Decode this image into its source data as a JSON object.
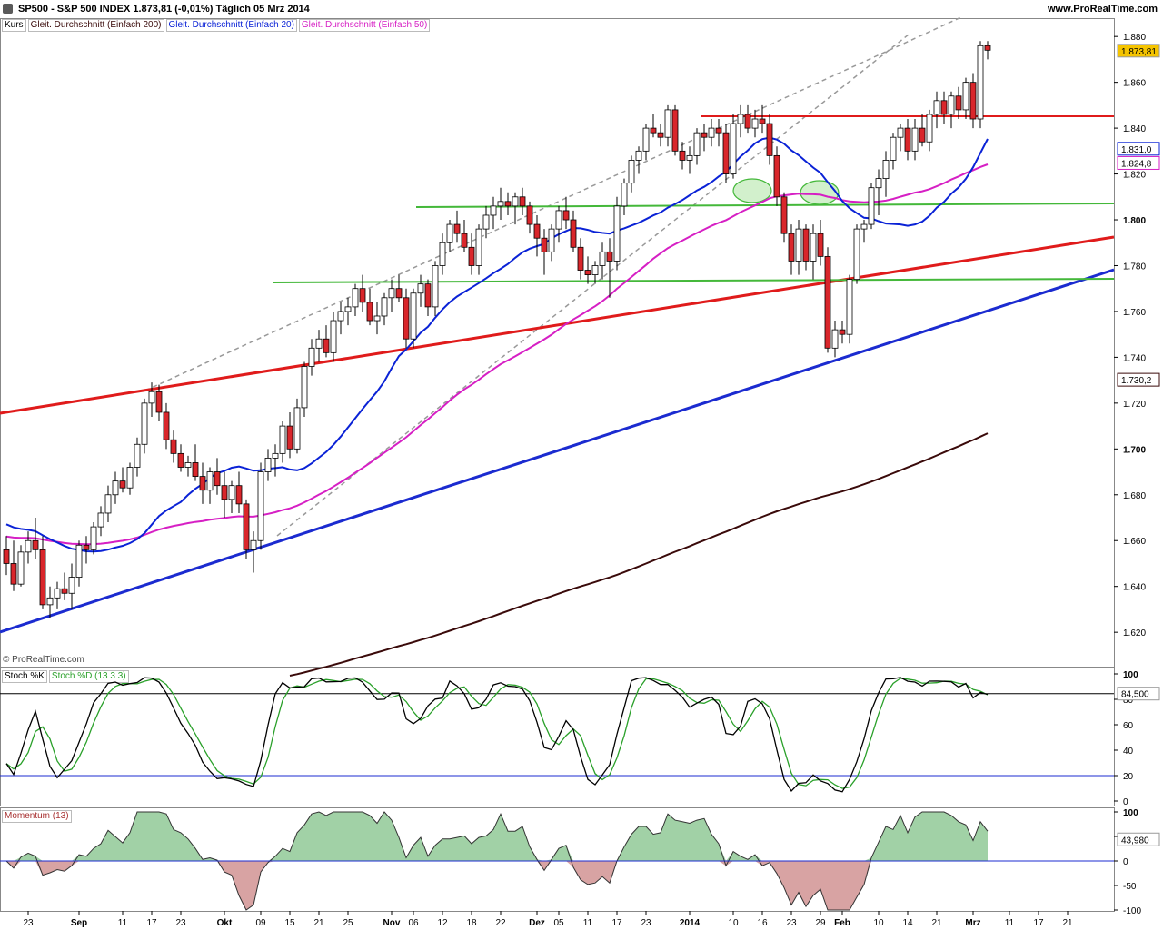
{
  "header": {
    "title": "SP500 - S&P 500 INDEX     1.873,81 (-0,01%)     Täglich  05 Mrz 2014",
    "site": "www.ProRealTime.com"
  },
  "legend": {
    "price": "Kurs",
    "sma200": "Gleit. Durchschnitt (Einfach 200)",
    "sma20": "Gleit. Durchschnitt (Einfach 20)",
    "sma50": "Gleit. Durchschnitt (Einfach 50)"
  },
  "copyright": "© ProRealTime.com",
  "colors": {
    "up": "#ffffff",
    "down": "#d9262b",
    "sma20": "#0a22d6",
    "sma50": "#d61fc4",
    "sma200": "#3a0a0a",
    "resistance": "#e01b1b",
    "support": "#1b2bd0",
    "horizontal": "#44b83a",
    "stochK": "#000000",
    "stochD": "#2aa02a",
    "momentum_fill": "#2f9a3a",
    "momentum_neg_fill": "#a83232"
  },
  "price_labels": {
    "last": "1.873,81",
    "sma20": "1.831,0",
    "sma50": "1.824,8",
    "sma200": "1.730,2"
  },
  "stoch": {
    "legend_k": "Stoch %K",
    "legend_d": "Stoch %D (13 3 3)",
    "value": "84,500"
  },
  "momentum": {
    "legend": "Momentum (13)",
    "value": "43,980"
  },
  "chart_data": [
    {
      "type": "candlestick",
      "title": "SP500 - S&P 500 INDEX",
      "ylim": [
        1605,
        1888
      ],
      "yticks": [
        1620,
        1640,
        1660,
        1680,
        1700,
        1720,
        1740,
        1760,
        1780,
        1800,
        1820,
        1840,
        1860,
        1880
      ],
      "ytick_labels": [
        "1.620",
        "1.640",
        "1.660",
        "1.680",
        "1.700",
        "1.720",
        "1.740",
        "1.760",
        "1.780",
        "1.800",
        "1.820",
        "1.840",
        "1.860",
        "1.880"
      ],
      "x_labels": [
        {
          "i": 3,
          "label": "23"
        },
        {
          "i": 10,
          "label": "Sep"
        },
        {
          "i": 16,
          "label": "11"
        },
        {
          "i": 20,
          "label": "17"
        },
        {
          "i": 24,
          "label": "23"
        },
        {
          "i": 30,
          "label": "Okt"
        },
        {
          "i": 35,
          "label": "09"
        },
        {
          "i": 39,
          "label": "15"
        },
        {
          "i": 43,
          "label": "21"
        },
        {
          "i": 47,
          "label": "25"
        },
        {
          "i": 53,
          "label": "Nov"
        },
        {
          "i": 56,
          "label": "06"
        },
        {
          "i": 60,
          "label": "12"
        },
        {
          "i": 64,
          "label": "18"
        },
        {
          "i": 68,
          "label": "22"
        },
        {
          "i": 73,
          "label": "Dez"
        },
        {
          "i": 76,
          "label": "05"
        },
        {
          "i": 80,
          "label": "11"
        },
        {
          "i": 84,
          "label": "17"
        },
        {
          "i": 88,
          "label": "23"
        },
        {
          "i": 94,
          "label": "2014"
        },
        {
          "i": 100,
          "label": "10"
        },
        {
          "i": 104,
          "label": "16"
        },
        {
          "i": 108,
          "label": "23"
        },
        {
          "i": 112,
          "label": "29"
        },
        {
          "i": 115,
          "label": "Feb"
        },
        {
          "i": 120,
          "label": "10"
        },
        {
          "i": 124,
          "label": "14"
        },
        {
          "i": 128,
          "label": "21"
        },
        {
          "i": 133,
          "label": "Mrz"
        },
        {
          "i": 138,
          "label": "11"
        },
        {
          "i": 142,
          "label": "17"
        },
        {
          "i": 146,
          "label": "21"
        }
      ],
      "candles": [
        [
          1656,
          1662,
          1645,
          1650
        ],
        [
          1650,
          1660,
          1638,
          1641
        ],
        [
          1641,
          1658,
          1640,
          1655
        ],
        [
          1655,
          1664,
          1650,
          1660
        ],
        [
          1660,
          1670,
          1652,
          1656
        ],
        [
          1656,
          1662,
          1630,
          1632
        ],
        [
          1632,
          1640,
          1626,
          1635
        ],
        [
          1635,
          1642,
          1630,
          1639
        ],
        [
          1639,
          1646,
          1634,
          1637
        ],
        [
          1637,
          1650,
          1630,
          1644
        ],
        [
          1644,
          1660,
          1640,
          1658
        ],
        [
          1658,
          1662,
          1650,
          1656
        ],
        [
          1656,
          1668,
          1654,
          1666
        ],
        [
          1666,
          1675,
          1662,
          1672
        ],
        [
          1672,
          1684,
          1668,
          1680
        ],
        [
          1680,
          1690,
          1676,
          1686
        ],
        [
          1686,
          1692,
          1681,
          1683
        ],
        [
          1683,
          1694,
          1680,
          1692
        ],
        [
          1692,
          1705,
          1688,
          1702
        ],
        [
          1702,
          1722,
          1698,
          1720
        ],
        [
          1720,
          1729,
          1714,
          1725
        ],
        [
          1725,
          1728,
          1712,
          1716
        ],
        [
          1716,
          1720,
          1700,
          1704
        ],
        [
          1704,
          1708,
          1694,
          1698
        ],
        [
          1698,
          1702,
          1690,
          1692
        ],
        [
          1692,
          1697,
          1688,
          1694
        ],
        [
          1694,
          1702,
          1686,
          1688
        ],
        [
          1688,
          1694,
          1676,
          1682
        ],
        [
          1682,
          1692,
          1676,
          1690
        ],
        [
          1690,
          1696,
          1680,
          1684
        ],
        [
          1684,
          1690,
          1670,
          1678
        ],
        [
          1678,
          1686,
          1672,
          1684
        ],
        [
          1684,
          1690,
          1672,
          1676
        ],
        [
          1676,
          1678,
          1652,
          1656
        ],
        [
          1656,
          1664,
          1646,
          1660
        ],
        [
          1660,
          1694,
          1656,
          1690
        ],
        [
          1690,
          1700,
          1686,
          1696
        ],
        [
          1696,
          1702,
          1688,
          1698
        ],
        [
          1698,
          1712,
          1694,
          1710
        ],
        [
          1710,
          1716,
          1696,
          1700
        ],
        [
          1700,
          1722,
          1698,
          1718
        ],
        [
          1718,
          1738,
          1714,
          1736
        ],
        [
          1736,
          1748,
          1732,
          1744
        ],
        [
          1744,
          1752,
          1738,
          1748
        ],
        [
          1748,
          1754,
          1740,
          1742
        ],
        [
          1742,
          1760,
          1738,
          1756
        ],
        [
          1756,
          1764,
          1750,
          1760
        ],
        [
          1760,
          1766,
          1754,
          1762
        ],
        [
          1762,
          1772,
          1758,
          1770
        ],
        [
          1770,
          1776,
          1760,
          1764
        ],
        [
          1764,
          1770,
          1754,
          1756
        ],
        [
          1756,
          1764,
          1750,
          1758
        ],
        [
          1758,
          1768,
          1754,
          1766
        ],
        [
          1766,
          1774,
          1760,
          1770
        ],
        [
          1770,
          1776,
          1764,
          1766
        ],
        [
          1766,
          1770,
          1744,
          1748
        ],
        [
          1748,
          1770,
          1744,
          1768
        ],
        [
          1768,
          1776,
          1762,
          1772
        ],
        [
          1772,
          1774,
          1758,
          1762
        ],
        [
          1762,
          1782,
          1758,
          1780
        ],
        [
          1780,
          1794,
          1776,
          1790
        ],
        [
          1790,
          1800,
          1786,
          1798
        ],
        [
          1798,
          1804,
          1790,
          1794
        ],
        [
          1794,
          1800,
          1786,
          1788
        ],
        [
          1788,
          1794,
          1776,
          1780
        ],
        [
          1780,
          1798,
          1776,
          1796
        ],
        [
          1796,
          1806,
          1792,
          1802
        ],
        [
          1802,
          1810,
          1796,
          1806
        ],
        [
          1806,
          1814,
          1800,
          1808
        ],
        [
          1808,
          1812,
          1802,
          1806
        ],
        [
          1806,
          1812,
          1798,
          1810
        ],
        [
          1810,
          1814,
          1802,
          1806
        ],
        [
          1806,
          1808,
          1794,
          1798
        ],
        [
          1798,
          1802,
          1784,
          1792
        ],
        [
          1792,
          1796,
          1776,
          1786
        ],
        [
          1786,
          1798,
          1782,
          1796
        ],
        [
          1796,
          1806,
          1790,
          1804
        ],
        [
          1804,
          1810,
          1796,
          1800
        ],
        [
          1800,
          1804,
          1786,
          1788
        ],
        [
          1788,
          1792,
          1774,
          1778
        ],
        [
          1778,
          1784,
          1772,
          1776
        ],
        [
          1776,
          1782,
          1772,
          1780
        ],
        [
          1780,
          1790,
          1774,
          1786
        ],
        [
          1786,
          1792,
          1766,
          1782
        ],
        [
          1782,
          1810,
          1778,
          1806
        ],
        [
          1806,
          1818,
          1802,
          1816
        ],
        [
          1816,
          1828,
          1812,
          1826
        ],
        [
          1826,
          1832,
          1820,
          1830
        ],
        [
          1830,
          1842,
          1826,
          1840
        ],
        [
          1840,
          1846,
          1836,
          1838
        ],
        [
          1838,
          1842,
          1832,
          1836
        ],
        [
          1836,
          1850,
          1832,
          1848
        ],
        [
          1848,
          1850,
          1828,
          1830
        ],
        [
          1830,
          1834,
          1822,
          1826
        ],
        [
          1826,
          1832,
          1820,
          1828
        ],
        [
          1828,
          1840,
          1824,
          1838
        ],
        [
          1838,
          1842,
          1830,
          1836
        ],
        [
          1836,
          1844,
          1832,
          1840
        ],
        [
          1840,
          1844,
          1832,
          1838
        ],
        [
          1838,
          1842,
          1816,
          1820
        ],
        [
          1820,
          1846,
          1818,
          1842
        ],
        [
          1842,
          1850,
          1836,
          1846
        ],
        [
          1846,
          1850,
          1838,
          1840
        ],
        [
          1840,
          1848,
          1836,
          1844
        ],
        [
          1844,
          1850,
          1838,
          1842
        ],
        [
          1842,
          1846,
          1824,
          1828
        ],
        [
          1828,
          1832,
          1806,
          1810
        ],
        [
          1810,
          1812,
          1790,
          1794
        ],
        [
          1794,
          1798,
          1776,
          1782
        ],
        [
          1782,
          1800,
          1776,
          1796
        ],
        [
          1796,
          1798,
          1778,
          1782
        ],
        [
          1782,
          1798,
          1774,
          1794
        ],
        [
          1794,
          1800,
          1780,
          1784
        ],
        [
          1784,
          1788,
          1742,
          1744
        ],
        [
          1744,
          1756,
          1740,
          1752
        ],
        [
          1752,
          1756,
          1746,
          1750
        ],
        [
          1750,
          1776,
          1746,
          1774
        ],
        [
          1774,
          1798,
          1772,
          1796
        ],
        [
          1796,
          1800,
          1790,
          1798
        ],
        [
          1798,
          1816,
          1796,
          1814
        ],
        [
          1814,
          1822,
          1802,
          1818
        ],
        [
          1818,
          1830,
          1810,
          1826
        ],
        [
          1826,
          1838,
          1822,
          1836
        ],
        [
          1836,
          1842,
          1830,
          1840
        ],
        [
          1840,
          1844,
          1826,
          1830
        ],
        [
          1830,
          1844,
          1826,
          1840
        ],
        [
          1840,
          1846,
          1832,
          1834
        ],
        [
          1834,
          1848,
          1830,
          1846
        ],
        [
          1846,
          1856,
          1840,
          1852
        ],
        [
          1852,
          1856,
          1842,
          1846
        ],
        [
          1846,
          1856,
          1840,
          1854
        ],
        [
          1854,
          1858,
          1844,
          1848
        ],
        [
          1848,
          1862,
          1844,
          1860
        ],
        [
          1860,
          1864,
          1840,
          1844
        ],
        [
          1844,
          1878,
          1840,
          1876
        ],
        [
          1876,
          1878,
          1870,
          1874
        ]
      ]
    },
    {
      "type": "line",
      "title": "Stoch %K / Stoch %D (13 3 3)",
      "ylim": [
        0,
        100
      ],
      "yticks": [
        0,
        20,
        40,
        60,
        80,
        100
      ],
      "levels": [
        20,
        84.5
      ]
    },
    {
      "type": "area",
      "title": "Momentum (13)",
      "ylim": [
        -100,
        100
      ],
      "yticks": [
        -100,
        -50,
        0,
        50,
        100
      ]
    }
  ]
}
